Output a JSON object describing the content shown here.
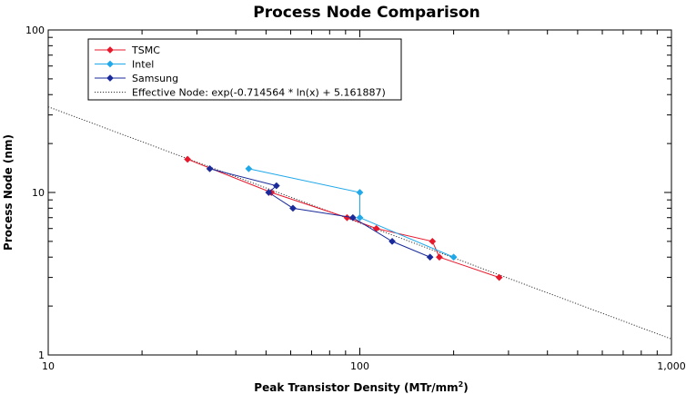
{
  "chart_data": {
    "type": "scatter",
    "title": "Process Node Comparison",
    "xlabel": "Peak Transistor Density (MTr/mm",
    "xlabel_sup": "2",
    "xlabel_end": ")",
    "ylabel": "Process Node (nm)",
    "xscale": "log",
    "yscale": "log",
    "xlim": [
      10,
      1000
    ],
    "ylim": [
      1,
      100
    ],
    "x_ticks": [
      {
        "value": 10,
        "label": "10"
      },
      {
        "value": 100,
        "label": "100"
      },
      {
        "value": 1000,
        "label": "1,000"
      }
    ],
    "y_ticks": [
      {
        "value": 1,
        "label": "1"
      },
      {
        "value": 10,
        "label": "10"
      },
      {
        "value": 100,
        "label": "100"
      }
    ],
    "legend_position": "top-left",
    "series": [
      {
        "name": "TSMC",
        "color": "#e8182c",
        "marker": "diamond",
        "points": [
          [
            28,
            16
          ],
          [
            52,
            10
          ],
          [
            91,
            7
          ],
          [
            113,
            6
          ],
          [
            171,
            5
          ],
          [
            180,
            4
          ],
          [
            280,
            3
          ]
        ]
      },
      {
        "name": "Intel",
        "color": "#1fa8ea",
        "marker": "diamond",
        "points": [
          [
            44,
            14
          ],
          [
            100,
            10
          ],
          [
            100,
            7
          ],
          [
            200,
            4
          ]
        ]
      },
      {
        "name": "Samsung",
        "color": "#1a2a9a",
        "marker": "diamond",
        "points": [
          [
            33,
            14
          ],
          [
            54,
            11
          ],
          [
            51,
            10
          ],
          [
            61,
            8
          ],
          [
            95,
            7
          ],
          [
            127,
            5
          ],
          [
            168,
            4
          ]
        ]
      }
    ],
    "trend": {
      "name": "Effective Node: exp(-0.714564 * ln(x) + 5.161887)",
      "color": "#333333",
      "style": "dotted",
      "a": -0.714564,
      "b": 5.161887
    }
  }
}
